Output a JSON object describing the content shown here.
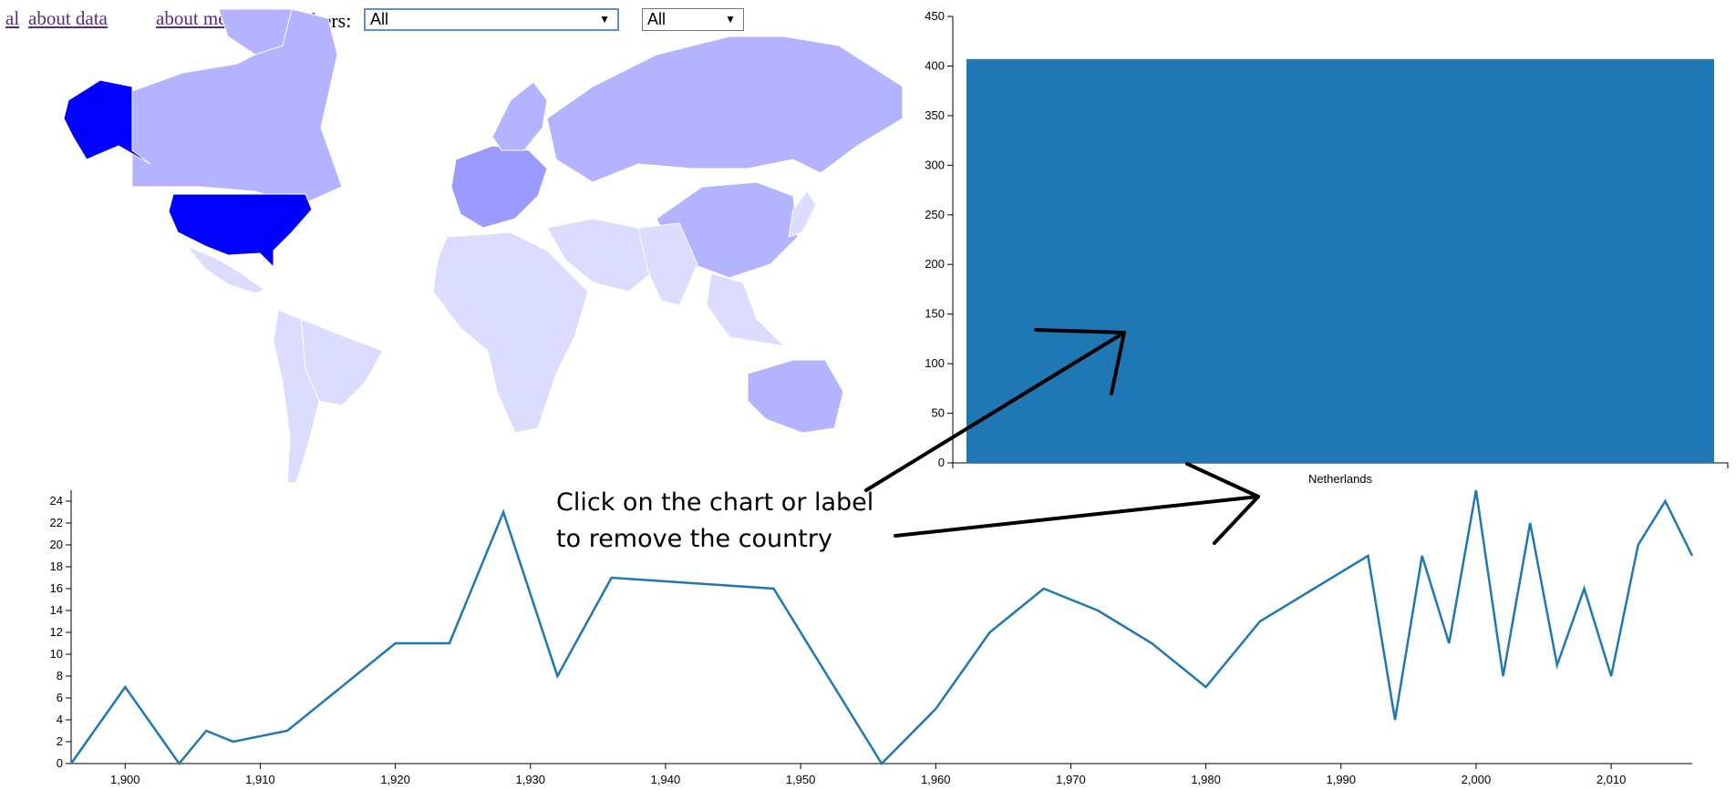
{
  "nav": {
    "link_all": "al",
    "link_about_data": "about data",
    "link_about_me": "about me"
  },
  "filters": {
    "label": "Filters:",
    "select1_value": "All",
    "select2_value": "All",
    "dropdown_glyph": "▼"
  },
  "annotation": {
    "line1": "Click on the chart or label",
    "line2": "to remove the country"
  },
  "colors": {
    "map_highlight": "#0000ff",
    "map_high": "#b3b3ff",
    "map_mid": "#9a9aff",
    "map_low": "#dcdcff",
    "bar": "#1f77b4",
    "line": "#1f77b4"
  },
  "chart_data": [
    {
      "type": "bar",
      "categories": [
        "Netherlands"
      ],
      "values": [
        407
      ],
      "ylim": [
        0,
        450
      ],
      "yticks": [
        0,
        50,
        100,
        150,
        200,
        250,
        300,
        350,
        400,
        450
      ]
    },
    {
      "type": "line",
      "x": [
        1896,
        1900,
        1904,
        1906,
        1908,
        1912,
        1920,
        1924,
        1928,
        1932,
        1936,
        1948,
        1952,
        1956,
        1960,
        1964,
        1968,
        1972,
        1976,
        1980,
        1984,
        1988,
        1992,
        1994,
        1996,
        1998,
        2000,
        2002,
        2004,
        2006,
        2008,
        2010,
        2012,
        2014,
        2016
      ],
      "values": [
        0,
        7,
        0,
        3,
        2,
        3,
        11,
        11,
        23,
        8,
        17,
        16,
        8,
        0,
        5,
        12,
        16,
        14,
        11,
        7,
        13,
        16,
        19,
        4,
        19,
        11,
        25,
        8,
        22,
        9,
        16,
        8,
        20,
        24,
        19
      ],
      "xlim": [
        1896,
        2016
      ],
      "ylim": [
        0,
        25
      ],
      "xticks": [
        "1,900",
        "1,910",
        "1,920",
        "1,930",
        "1,940",
        "1,950",
        "1,960",
        "1,970",
        "1,980",
        "1,990",
        "2,000",
        "2,010"
      ],
      "yticks": [
        0,
        2,
        4,
        6,
        8,
        10,
        12,
        14,
        16,
        18,
        20,
        22,
        24
      ]
    }
  ]
}
